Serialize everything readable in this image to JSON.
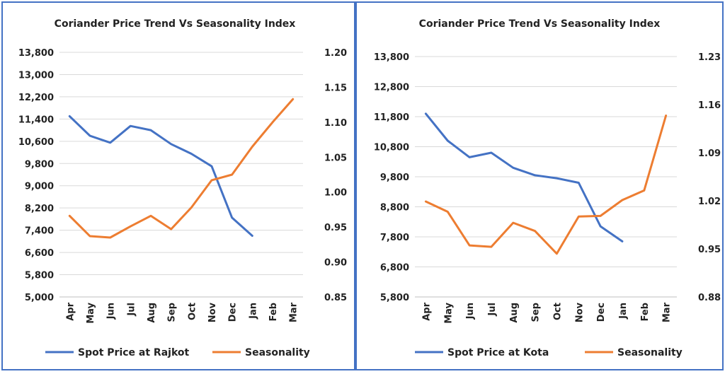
{
  "chart_data": [
    {
      "type": "line",
      "title": "Coriander Price Trend Vs Seasonality Index",
      "categories": [
        "Apr",
        "May",
        "Jun",
        "Jul",
        "Aug",
        "Sep",
        "Oct",
        "Nov",
        "Dec",
        "Jan",
        "Feb",
        "Mar"
      ],
      "y_left": {
        "ticks": [
          "5,000",
          "5,800",
          "6,600",
          "7,400",
          "8,200",
          "9,000",
          "9,800",
          "10,600",
          "11,400",
          "12,200",
          "13,000",
          "13,800"
        ],
        "min": 5000,
        "max": 13800
      },
      "y_right": {
        "ticks": [
          "0.85",
          "0.90",
          "0.95",
          "1.00",
          "1.05",
          "1.10",
          "1.15",
          "1.20"
        ],
        "min": 0.85,
        "max": 1.2
      },
      "series": [
        {
          "name": "Spot Price at Rajkot",
          "axis": "left",
          "color": "#4472c4",
          "values": [
            11500,
            10800,
            10550,
            11150,
            11000,
            10500,
            10150,
            9700,
            7850,
            7200,
            null,
            null
          ]
        },
        {
          "name": "Seasonality",
          "axis": "right",
          "color": "#ed7d31",
          "values": [
            0.966,
            0.937,
            0.935,
            0.951,
            0.966,
            0.947,
            0.978,
            1.017,
            1.025,
            1.065,
            1.1,
            1.133
          ]
        }
      ],
      "legend_position": "bottom"
    },
    {
      "type": "line",
      "title": "Coriander Price Trend Vs Seasonality Index",
      "categories": [
        "Apr",
        "May",
        "Jun",
        "Jul",
        "Aug",
        "Sep",
        "Oct",
        "Nov",
        "Dec",
        "Jan",
        "Feb",
        "Mar"
      ],
      "y_left": {
        "ticks": [
          "5,800",
          "6,800",
          "7,800",
          "8,800",
          "9,800",
          "10,800",
          "11,800",
          "12,800",
          "13,800"
        ],
        "min": 5800,
        "max": 13800
      },
      "y_right": {
        "ticks": [
          "0.88",
          "0.95",
          "1.02",
          "1.09",
          "1.16",
          "1.23"
        ],
        "min": 0.88,
        "max": 1.23
      },
      "series": [
        {
          "name": "Spot Price at Kota",
          "axis": "left",
          "color": "#4472c4",
          "values": [
            11900,
            11000,
            10450,
            10600,
            10100,
            9850,
            9750,
            9600,
            8150,
            7650,
            null,
            null
          ]
        },
        {
          "name": "Seasonality",
          "axis": "right",
          "color": "#ed7d31",
          "values": [
            1.019,
            1.004,
            0.955,
            0.953,
            0.988,
            0.976,
            0.943,
            0.997,
            0.998,
            1.021,
            1.035,
            1.144
          ]
        }
      ],
      "legend_position": "bottom"
    }
  ]
}
